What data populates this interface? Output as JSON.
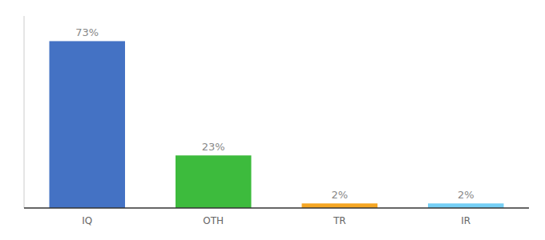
{
  "chart_data": {
    "type": "bar",
    "categories": [
      "IQ",
      "OTH",
      "TR",
      "IR"
    ],
    "values": [
      73,
      23,
      2,
      2
    ],
    "value_labels": [
      "73%",
      "23%",
      "2%",
      "2%"
    ],
    "colors": [
      "#4472c4",
      "#3dbb3d",
      "#f5a623",
      "#74cff5"
    ],
    "ylim": [
      0,
      84
    ],
    "data_labels": true,
    "tick_labels": "x",
    "grid": false
  }
}
